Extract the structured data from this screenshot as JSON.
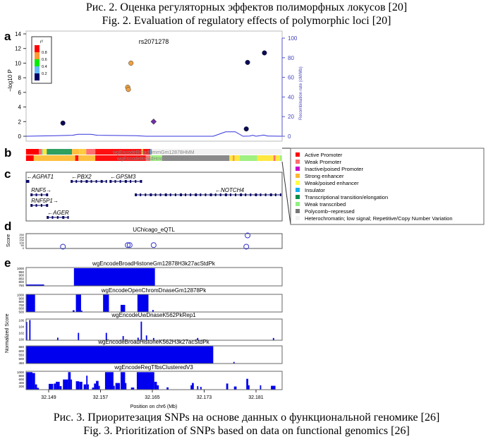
{
  "captions": {
    "fig2_ru": "Рис. 2. Оценка регуляторных эффектов полиморфных локусов [20]",
    "fig2_en": "Fig. 2. Evaluation of regulatory effects of polymorphic loci [20]",
    "fig3_ru": "Рис. 3. Приоритезация SNPs на основе данных о функциональной геномике [26]",
    "fig3_en": "Fig. 3. Prioritization of SNPs based on data on functional genomics [26]"
  },
  "panel_labels": [
    "a",
    "b",
    "c",
    "d",
    "e"
  ],
  "chart_data": [
    {
      "panel": "a",
      "type": "scatter",
      "title": "rs2071278",
      "ylabel": "−log10 P",
      "ylabel_right": "Recombination rate (cM/Mb)",
      "ylim": [
        0,
        14
      ],
      "yticks": [
        0,
        2,
        4,
        6,
        8,
        10,
        12,
        14
      ],
      "ylim_right": [
        0,
        100
      ],
      "yticks_right": [
        0,
        20,
        40,
        60,
        80,
        100
      ],
      "legend": {
        "title": "r²",
        "labels": [
          "0.8",
          "0.6",
          "0.4",
          "0.2"
        ],
        "colors": [
          "#ff0000",
          "#ff9933",
          "#00ee00",
          "#66bbff",
          "#000066"
        ],
        "placement": "top-left"
      },
      "points": [
        {
          "x": 32.1512,
          "y": 1.8,
          "color": "#0a0a55",
          "shape": "circle"
        },
        {
          "x": 32.1612,
          "y": 6.7,
          "color": "#f0a040",
          "shape": "circle"
        },
        {
          "x": 32.1613,
          "y": 6.4,
          "color": "#f0a040",
          "shape": "circle"
        },
        {
          "x": 32.1617,
          "y": 10.0,
          "color": "#f0a040",
          "shape": "circle"
        },
        {
          "x": 32.1652,
          "y": 2.0,
          "color": "#7030a0",
          "shape": "diamond"
        },
        {
          "x": 32.1795,
          "y": 1.0,
          "color": "#0a0a55",
          "shape": "circle"
        },
        {
          "x": 32.1797,
          "y": 10.1,
          "color": "#0a0a55",
          "shape": "circle"
        },
        {
          "x": 32.1823,
          "y": 11.4,
          "color": "#0a0a55",
          "shape": "circle"
        }
      ],
      "recombination": [
        [
          32.1455,
          0
        ],
        [
          32.15,
          0.5
        ],
        [
          32.1527,
          1
        ],
        [
          32.1535,
          2
        ],
        [
          32.1555,
          2
        ],
        [
          32.1565,
          1
        ],
        [
          32.1625,
          0.5
        ],
        [
          32.164,
          0
        ],
        [
          32.1744,
          0
        ],
        [
          32.1763,
          4.5
        ],
        [
          32.1778,
          4.5
        ],
        [
          32.179,
          0
        ],
        [
          32.18,
          0.2
        ],
        [
          32.1805,
          1
        ],
        [
          32.181,
          0
        ],
        [
          32.1822,
          1.2
        ],
        [
          32.1828,
          0.2
        ],
        [
          32.185,
          0
        ]
      ]
    },
    {
      "panel": "b",
      "type": "heatmap",
      "tracks": [
        {
          "name": "wgEncodeBroadHmmGm12878HMM",
          "segments": [
            [
              32.1455,
              32.1475,
              "#ff0000"
            ],
            [
              32.1475,
              32.148,
              "#ff6e6e"
            ],
            [
              32.148,
              32.1482,
              "#a0f080"
            ],
            [
              32.1482,
              32.1487,
              "#ffe840"
            ],
            [
              32.1487,
              32.1526,
              "#2ea060"
            ],
            [
              32.1526,
              32.1537,
              "#ffc040"
            ],
            [
              32.1537,
              32.1548,
              "#ffcc40"
            ],
            [
              32.1548,
              32.1562,
              "#ff7070"
            ],
            [
              32.1562,
              32.1633,
              "#ff1010"
            ],
            [
              32.1633,
              32.1636,
              "#ffb040"
            ],
            [
              32.1636,
              32.1647,
              "#ff1010"
            ],
            [
              32.1647,
              32.1649,
              "#30b0f0"
            ],
            [
              32.1649,
              32.185,
              "#f2f2f2"
            ]
          ]
        },
        {
          "name": "wgEncodeBroadHmmK562HMM",
          "segments": [
            [
              32.1455,
              32.1467,
              "#ff0000"
            ],
            [
              32.1467,
              32.1531,
              "#ffc040"
            ],
            [
              32.1531,
              32.1536,
              "#ff1010"
            ],
            [
              32.1536,
              32.1562,
              "#ffc040"
            ],
            [
              32.1562,
              32.164,
              "#ff1010"
            ],
            [
              32.164,
              32.1647,
              "#ff7070"
            ],
            [
              32.1647,
              32.1665,
              "#a0f080"
            ],
            [
              32.1665,
              32.1769,
              "#8a8a8a"
            ],
            [
              32.1769,
              32.1774,
              "#ffe840"
            ],
            [
              32.1774,
              32.1777,
              "#ffa030"
            ],
            [
              32.1777,
              32.1785,
              "#ffe840"
            ],
            [
              32.1785,
              32.1812,
              "#a0f080"
            ],
            [
              32.1812,
              32.1837,
              "#ffe840"
            ],
            [
              32.1837,
              32.184,
              "#ff7070"
            ],
            [
              32.184,
              32.1847,
              "#ffe840"
            ],
            [
              32.1847,
              32.185,
              "#a0f080"
            ]
          ]
        }
      ],
      "legend": [
        {
          "label": "Active Promoter",
          "color": "#ff0000"
        },
        {
          "label": "Weak Promoter",
          "color": "#ff6e6e"
        },
        {
          "label": "Inactive/poised Promoter",
          "color": "#cc00cc"
        },
        {
          "label": "Strong enhancer",
          "color": "#ffb830"
        },
        {
          "label": "Weak/poised enhancer",
          "color": "#ffff40"
        },
        {
          "label": "Insulator",
          "color": "#10b0f0"
        },
        {
          "label": "Transcriptional transition/elongation",
          "color": "#00904a"
        },
        {
          "label": "Weak transcribed",
          "color": "#90f080"
        },
        {
          "label": "Polycomb−repressed",
          "color": "#777777"
        },
        {
          "label": "Heterochromatin; low signal; Repetitive/Copy Number Variation",
          "color": "#f2f2f2"
        }
      ]
    },
    {
      "panel": "c",
      "type": "genes",
      "genes": [
        {
          "name": "AGPAT1",
          "strand": "-",
          "row": 0,
          "start": 32.1456,
          "end": 32.1459
        },
        {
          "name": "PBX2",
          "strand": "-",
          "row": 0,
          "start": 32.1525,
          "end": 32.1579
        },
        {
          "name": "GPSM3",
          "strand": "-",
          "row": 0,
          "start": 32.1585,
          "end": 32.1632
        },
        {
          "name": "RNF5",
          "strand": "+",
          "row": 1,
          "start": 32.1463,
          "end": 32.1487
        },
        {
          "name": "NOTCH4",
          "strand": "-",
          "row": 1,
          "start": 32.1624,
          "end": 32.1848
        },
        {
          "name": "RNF5P1",
          "strand": "+",
          "row": 2,
          "start": 32.1463,
          "end": 32.1487
        },
        {
          "name": "AGER",
          "strand": "-",
          "row": 3,
          "start": 32.1488,
          "end": 32.152
        }
      ]
    },
    {
      "panel": "d",
      "type": "scatter",
      "title": "UChicago_eQTL",
      "ylabel": "Score",
      "ylim": [
        0,
        250
      ],
      "yticks": [
        0,
        50,
        100,
        150,
        200,
        250
      ],
      "points": [
        [
          32.1512,
          20
        ],
        [
          32.1612,
          50
        ],
        [
          32.1615,
          50
        ],
        [
          32.1652,
          50
        ],
        [
          32.1795,
          20
        ],
        [
          32.1797,
          230
        ]
      ]
    },
    {
      "panel": "e",
      "type": "bar",
      "ylabel": "Normalized Score",
      "xlabel": "Position on chr6 (Mb)",
      "xticks": [
        32.149,
        32.157,
        32.165,
        32.173,
        32.181
      ],
      "xticklabels": [
        "32.149",
        "32.157",
        "32.165",
        "32.173",
        "32.181"
      ],
      "xlim": [
        32.1455,
        32.185
      ],
      "tracks": [
        {
          "name": "wgEncodeBroadHistoneGm12878H3k27acStdPk",
          "ylim": [
            740,
            1010
          ],
          "yticks": [
            750,
            800,
            850,
            900,
            950,
            1000
          ],
          "bars": [
            [
              32.1455,
              32.1483,
              760
            ],
            [
              32.1529,
              32.1654,
              1000
            ]
          ]
        },
        {
          "name": "wgEncodeOpenChromDnaseGm12878Pk",
          "ylim": [
            490,
            1010
          ],
          "yticks": [
            500,
            600,
            700,
            800,
            900,
            1000
          ],
          "bars": [
            [
              32.1455,
              32.1469,
              1000
            ],
            [
              32.1527,
              32.153,
              540
            ],
            [
              32.1532,
              32.154,
              1000
            ],
            [
              32.154,
              32.1542,
              530
            ],
            [
              32.1574,
              32.1583,
              1000
            ],
            [
              32.1601,
              32.1608,
              700
            ],
            [
              32.1627,
              32.1644,
              1000
            ],
            [
              32.165,
              32.1652,
              550
            ]
          ]
        },
        {
          "name": "wgEncodeUwDnaseK562PkRep1",
          "ylim": [
            99.7,
            106.3
          ],
          "yticks": [
            100,
            102,
            104,
            106
          ],
          "bars": [
            [
              32.1455,
              32.1457,
              105.4
            ],
            [
              32.146,
              32.1462,
              106
            ],
            [
              32.1503,
              32.1505,
              100.5
            ],
            [
              32.1535,
              32.1537,
              102
            ],
            [
              32.1578,
              32.158,
              102
            ],
            [
              32.1604,
              32.1606,
              101
            ],
            [
              32.1627,
              32.1629,
              100.5
            ],
            [
              32.1632,
              32.1634,
              105.5
            ],
            [
              32.164,
              32.1642,
              101.2
            ],
            [
              32.1651,
              32.1653,
              100.4
            ],
            [
              32.1719,
              32.1721,
              100.4
            ],
            [
              32.1836,
              32.1838,
              100.4
            ]
          ]
        },
        {
          "name": "wgEncodeBroadHistoneK562H3k27acStdPk",
          "ylim": [
            440,
            660
          ],
          "yticks": [
            450,
            500,
            550,
            600,
            650
          ],
          "bars": [
            [
              32.1455,
              32.1744,
              655
            ],
            [
              32.1775,
              32.1777,
              460
            ]
          ]
        },
        {
          "name": "wgEncodeRegTfbsClusteredV3",
          "ylim": [
            0,
            1050
          ],
          "yticks": [
            200,
            400,
            600,
            800,
            1000
          ],
          "bars": [
            [
              32.1455,
              32.1465,
              1000
            ],
            [
              32.1465,
              32.1469,
              950
            ],
            [
              32.1469,
              32.1472,
              300
            ],
            [
              32.1472,
              32.1475,
              100
            ],
            [
              32.149,
              32.1497,
              330
            ],
            [
              32.1498,
              32.1501,
              350
            ],
            [
              32.1501,
              32.1507,
              450
            ],
            [
              32.1507,
              32.151,
              200
            ],
            [
              32.1512,
              32.152,
              580
            ],
            [
              32.152,
              32.1524,
              1000
            ],
            [
              32.1524,
              32.1526,
              580
            ],
            [
              32.1532,
              32.1537,
              480
            ],
            [
              32.1537,
              32.1542,
              450
            ],
            [
              32.1544,
              32.1548,
              300
            ],
            [
              32.1548,
              32.155,
              800
            ],
            [
              32.155,
              32.1552,
              300
            ],
            [
              32.1557,
              32.156,
              120
            ],
            [
              32.156,
              32.1563,
              350
            ],
            [
              32.1563,
              32.1567,
              500
            ],
            [
              32.1567,
              32.1569,
              220
            ],
            [
              32.1577,
              32.159,
              1000
            ],
            [
              32.159,
              32.1592,
              220
            ],
            [
              32.1593,
              32.16,
              380
            ],
            [
              32.1601,
              32.1608,
              1000
            ],
            [
              32.1608,
              32.161,
              380
            ],
            [
              32.1617,
              32.1622,
              120
            ],
            [
              32.1626,
              32.1653,
              1000
            ],
            [
              32.1653,
              32.1657,
              450
            ],
            [
              32.1657,
              32.166,
              250
            ],
            [
              32.1672,
              32.1675,
              130
            ],
            [
              32.1709,
              32.1711,
              250
            ],
            [
              32.1711,
              32.1714,
              380
            ],
            [
              32.1719,
              32.1721,
              200
            ],
            [
              32.1724,
              32.1726,
              160
            ],
            [
              32.1764,
              32.1767,
              350
            ],
            [
              32.1776,
              32.178,
              180
            ],
            [
              32.1795,
              32.1798,
              620
            ],
            [
              32.1798,
              32.18,
              250
            ],
            [
              32.1816,
              32.1818,
              250
            ],
            [
              32.1833,
              32.184,
              220
            ]
          ]
        }
      ]
    }
  ]
}
